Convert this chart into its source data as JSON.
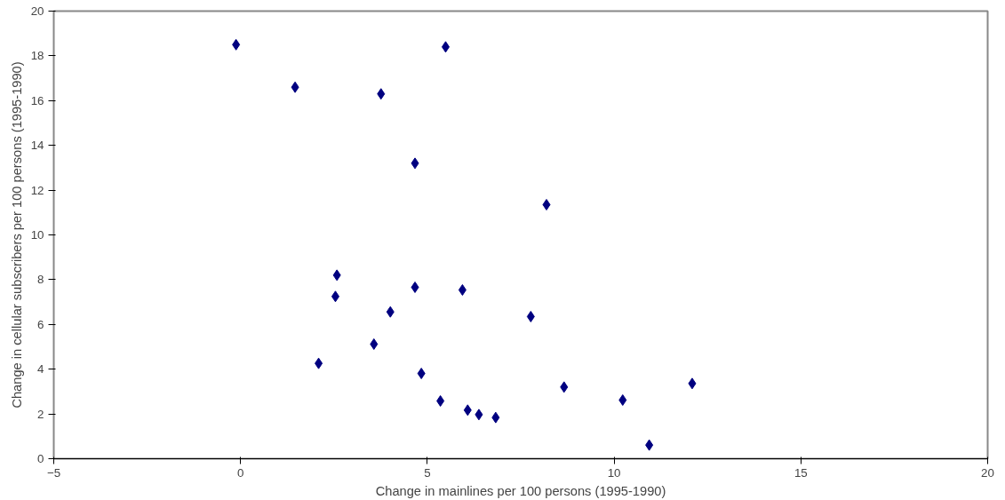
{
  "chart_data": {
    "type": "scatter",
    "xlabel": "Change in mainlines per 100 persons (1995-1990)",
    "ylabel": "Change in cellular subscribers per 100 persons (1995-1990)",
    "x": [
      -0.12,
      1.46,
      3.76,
      5.49,
      4.67,
      8.19,
      2.58,
      2.54,
      4.67,
      5.94,
      4.01,
      7.77,
      3.57,
      2.09,
      4.84,
      5.35,
      6.08,
      6.38,
      6.83,
      8.66,
      10.23,
      12.09,
      10.94
    ],
    "series": [
      {
        "color": "#000080",
        "values": [
          18.5,
          16.6,
          16.3,
          18.4,
          13.2,
          11.35,
          8.2,
          7.25,
          7.66,
          7.54,
          6.56,
          6.35,
          5.12,
          4.26,
          3.81,
          2.58,
          2.17,
          1.97,
          1.84,
          3.2,
          2.62,
          3.36,
          0.61
        ]
      }
    ],
    "xlim": [
      -5,
      20
    ],
    "ylim": [
      0,
      20
    ],
    "xticks": [
      -5,
      0,
      5,
      10,
      15,
      20
    ],
    "yticks": [
      0,
      2,
      4,
      6,
      8,
      10,
      12,
      14,
      16,
      18,
      20
    ],
    "marker": "diamond",
    "grid": false
  }
}
